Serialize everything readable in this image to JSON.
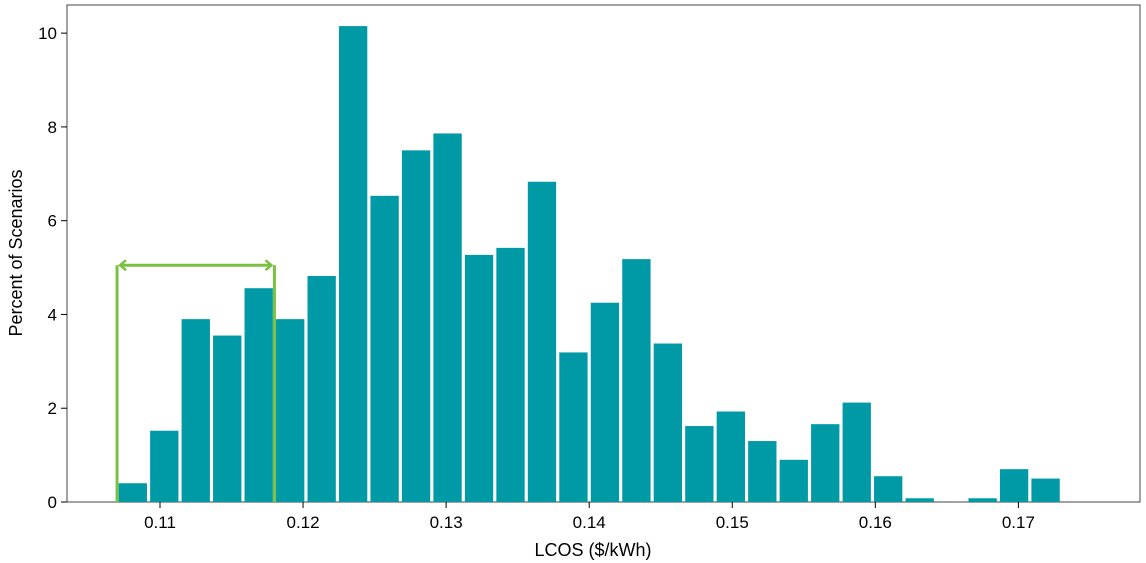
{
  "chart_data": {
    "type": "bar",
    "title": "",
    "xlabel": "LCOS ($/kWh)",
    "ylabel": "Percent of Scenarios",
    "xlim": [
      0.1035,
      0.1785
    ],
    "ylim": [
      0,
      10.6
    ],
    "xticks": [
      0.11,
      0.12,
      0.13,
      0.14,
      0.15,
      0.16,
      0.17
    ],
    "xtick_labels": [
      "0.11",
      "0.12",
      "0.13",
      "0.14",
      "0.15",
      "0.16",
      "0.17"
    ],
    "yticks": [
      0,
      2,
      4,
      6,
      8,
      10
    ],
    "ytick_labels": [
      "0",
      "2",
      "4",
      "6",
      "8",
      "10"
    ],
    "bin_width": 0.0022,
    "bar_color": "#009aa6",
    "grid": false,
    "legend": "none",
    "bins": [
      {
        "x": 0.1081,
        "value": 0.4
      },
      {
        "x": 0.1103,
        "value": 1.52
      },
      {
        "x": 0.1125,
        "value": 3.9
      },
      {
        "x": 0.1147,
        "value": 3.55
      },
      {
        "x": 0.1169,
        "value": 4.56
      },
      {
        "x": 0.1191,
        "value": 3.9
      },
      {
        "x": 0.1213,
        "value": 4.82
      },
      {
        "x": 0.1235,
        "value": 10.15
      },
      {
        "x": 0.1257,
        "value": 6.53
      },
      {
        "x": 0.1279,
        "value": 7.5
      },
      {
        "x": 0.1301,
        "value": 7.86
      },
      {
        "x": 0.1323,
        "value": 5.27
      },
      {
        "x": 0.1345,
        "value": 5.42
      },
      {
        "x": 0.1367,
        "value": 6.83
      },
      {
        "x": 0.1389,
        "value": 3.19
      },
      {
        "x": 0.1411,
        "value": 4.25
      },
      {
        "x": 0.1433,
        "value": 5.18
      },
      {
        "x": 0.1455,
        "value": 3.38
      },
      {
        "x": 0.1477,
        "value": 1.62
      },
      {
        "x": 0.1499,
        "value": 1.93
      },
      {
        "x": 0.1521,
        "value": 1.3
      },
      {
        "x": 0.1543,
        "value": 0.9
      },
      {
        "x": 0.1565,
        "value": 1.66
      },
      {
        "x": 0.1587,
        "value": 2.12
      },
      {
        "x": 0.1609,
        "value": 0.55
      },
      {
        "x": 0.1631,
        "value": 0.08
      },
      {
        "x": 0.1675,
        "value": 0.08
      },
      {
        "x": 0.1697,
        "value": 0.7
      },
      {
        "x": 0.1719,
        "value": 0.5
      }
    ],
    "annotation": {
      "type": "double-arrow-bracket",
      "x_start": 0.107,
      "x_end": 0.118,
      "y": 5.05,
      "color": "#7cc043"
    }
  }
}
